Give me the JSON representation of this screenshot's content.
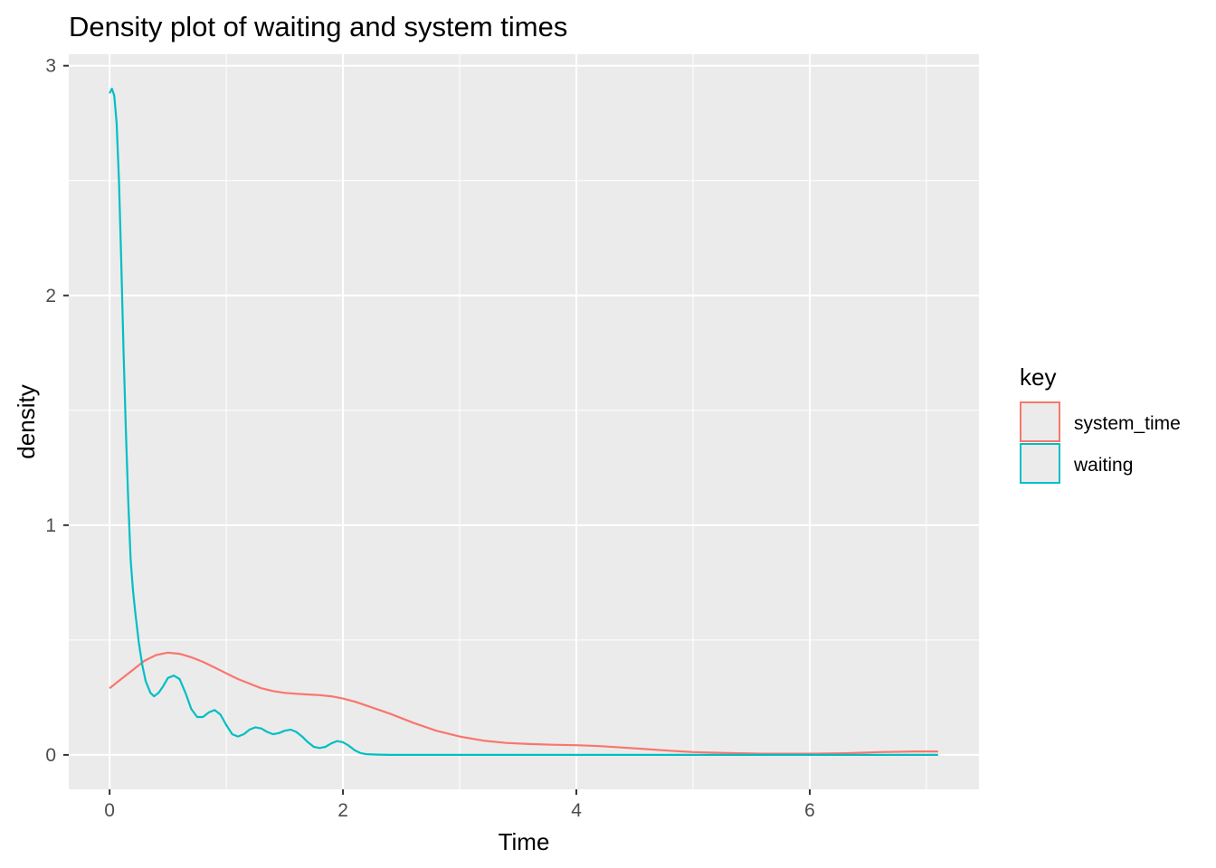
{
  "chart_data": {
    "type": "line",
    "title": "Density plot of waiting and system times",
    "xlabel": "Time",
    "ylabel": "density",
    "xlim": [
      -0.35,
      7.45
    ],
    "ylim": [
      -0.15,
      3.05
    ],
    "x_ticks": [
      0,
      2,
      4,
      6
    ],
    "y_ticks": [
      0,
      1,
      2,
      3
    ],
    "grid": true,
    "legend": {
      "title": "key",
      "placement": "right",
      "entries": [
        "system_time",
        "waiting"
      ]
    },
    "series": [
      {
        "name": "system_time",
        "color": "#F8766D",
        "x": [
          0,
          0.1,
          0.2,
          0.3,
          0.4,
          0.5,
          0.6,
          0.7,
          0.8,
          0.9,
          1.0,
          1.1,
          1.2,
          1.3,
          1.4,
          1.5,
          1.6,
          1.7,
          1.8,
          1.9,
          2.0,
          2.1,
          2.2,
          2.4,
          2.6,
          2.8,
          3.0,
          3.2,
          3.4,
          3.6,
          3.8,
          4.0,
          4.2,
          4.4,
          4.6,
          4.8,
          5.0,
          5.3,
          5.6,
          6.0,
          6.3,
          6.6,
          6.9,
          7.1
        ],
        "y": [
          0.29,
          0.33,
          0.37,
          0.41,
          0.435,
          0.445,
          0.44,
          0.425,
          0.405,
          0.38,
          0.355,
          0.33,
          0.31,
          0.29,
          0.278,
          0.27,
          0.266,
          0.263,
          0.26,
          0.255,
          0.245,
          0.232,
          0.215,
          0.18,
          0.14,
          0.105,
          0.08,
          0.062,
          0.052,
          0.047,
          0.044,
          0.042,
          0.038,
          0.032,
          0.025,
          0.018,
          0.012,
          0.008,
          0.005,
          0.005,
          0.007,
          0.012,
          0.015,
          0.015
        ]
      },
      {
        "name": "waiting",
        "color": "#00BFC4",
        "x": [
          0,
          0.02,
          0.04,
          0.06,
          0.08,
          0.1,
          0.12,
          0.14,
          0.16,
          0.18,
          0.2,
          0.22,
          0.25,
          0.28,
          0.31,
          0.35,
          0.38,
          0.42,
          0.46,
          0.5,
          0.55,
          0.6,
          0.65,
          0.7,
          0.75,
          0.8,
          0.85,
          0.9,
          0.95,
          1.0,
          1.05,
          1.1,
          1.15,
          1.2,
          1.25,
          1.3,
          1.35,
          1.4,
          1.45,
          1.5,
          1.55,
          1.6,
          1.65,
          1.7,
          1.75,
          1.8,
          1.85,
          1.9,
          1.95,
          2.0,
          2.05,
          2.1,
          2.15,
          2.2,
          2.3,
          2.4,
          2.6,
          3.0,
          4.0,
          5.0,
          6.0,
          7.1
        ],
        "y": [
          2.88,
          2.9,
          2.87,
          2.75,
          2.5,
          2.15,
          1.75,
          1.4,
          1.1,
          0.85,
          0.72,
          0.62,
          0.49,
          0.39,
          0.32,
          0.27,
          0.255,
          0.27,
          0.3,
          0.335,
          0.345,
          0.33,
          0.27,
          0.2,
          0.165,
          0.165,
          0.185,
          0.195,
          0.175,
          0.13,
          0.09,
          0.08,
          0.09,
          0.11,
          0.12,
          0.115,
          0.1,
          0.09,
          0.095,
          0.105,
          0.11,
          0.1,
          0.08,
          0.055,
          0.035,
          0.03,
          0.035,
          0.05,
          0.06,
          0.055,
          0.04,
          0.02,
          0.008,
          0.003,
          0.001,
          0.0,
          0.0,
          0.0,
          0.0,
          0.0,
          0.0,
          0.0
        ]
      }
    ]
  }
}
